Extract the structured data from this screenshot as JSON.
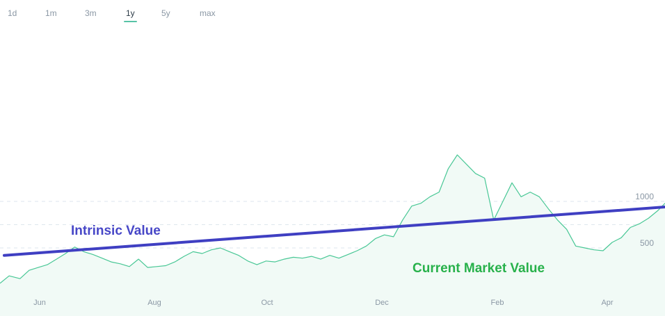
{
  "range_tabs": [
    "1d",
    "1m",
    "3m",
    "1y",
    "5y",
    "max"
  ],
  "active_range": "1y",
  "colors": {
    "price_line": "#48c795",
    "price_fill": "#f1faf6",
    "intrinsic_line": "#3f3fc2",
    "grid": "#dde6ec",
    "axis_text": "#8a97a4",
    "intrinsic_label": "#4747c7",
    "market_label": "#28b14b"
  },
  "chart_data": {
    "type": "line",
    "title": "",
    "xlabel": "",
    "ylabel": "",
    "x_ticks": [
      "Jun",
      "Aug",
      "Oct",
      "Dec",
      "Feb",
      "Apr"
    ],
    "y_ticks": [
      500,
      1000
    ],
    "ylim": [
      0,
      1800
    ],
    "grid": true,
    "annotations": {
      "intrinsic": "Intrinsic Value",
      "market": "Current Market Value"
    },
    "series": [
      {
        "name": "Current Market Value",
        "x": [
          "2020-05-07",
          "2020-05-12",
          "2020-05-18",
          "2020-05-23",
          "2020-05-28",
          "2020-06-02",
          "2020-06-07",
          "2020-06-12",
          "2020-06-17",
          "2020-06-22",
          "2020-06-27",
          "2020-07-02",
          "2020-07-07",
          "2020-07-12",
          "2020-07-17",
          "2020-07-22",
          "2020-07-27",
          "2020-08-01",
          "2020-08-06",
          "2020-08-11",
          "2020-08-16",
          "2020-08-21",
          "2020-08-26",
          "2020-08-31",
          "2020-09-05",
          "2020-09-10",
          "2020-09-15",
          "2020-09-20",
          "2020-09-25",
          "2020-09-30",
          "2020-10-05",
          "2020-10-10",
          "2020-10-15",
          "2020-10-20",
          "2020-10-25",
          "2020-10-30",
          "2020-11-04",
          "2020-11-09",
          "2020-11-14",
          "2020-11-19",
          "2020-11-24",
          "2020-11-29",
          "2020-12-04",
          "2020-12-09",
          "2020-12-14",
          "2020-12-19",
          "2020-12-24",
          "2020-12-29",
          "2021-01-03",
          "2021-01-08",
          "2021-01-13",
          "2021-01-18",
          "2021-01-23",
          "2021-01-28",
          "2021-02-02",
          "2021-02-07",
          "2021-02-12",
          "2021-02-17",
          "2021-02-22",
          "2021-02-27",
          "2021-03-04",
          "2021-03-09",
          "2021-03-14",
          "2021-03-19",
          "2021-03-24",
          "2021-03-29",
          "2021-04-03",
          "2021-04-08",
          "2021-04-13",
          "2021-04-18",
          "2021-04-23",
          "2021-04-28",
          "2021-05-03",
          "2021-05-07"
        ],
        "values": [
          120,
          200,
          170,
          260,
          290,
          320,
          380,
          440,
          510,
          460,
          430,
          390,
          350,
          330,
          300,
          380,
          290,
          300,
          310,
          350,
          410,
          460,
          440,
          480,
          500,
          460,
          420,
          360,
          320,
          360,
          350,
          380,
          400,
          390,
          410,
          380,
          420,
          390,
          430,
          470,
          520,
          600,
          640,
          620,
          800,
          950,
          980,
          1050,
          1100,
          1350,
          1500,
          1400,
          1300,
          1250,
          800,
          1000,
          1200,
          1050,
          1100,
          1050,
          920,
          800,
          700,
          520,
          500,
          480,
          470,
          560,
          610,
          720,
          760,
          820,
          900,
          980
        ]
      },
      {
        "name": "Intrinsic Value",
        "x": [
          "2020-05-07",
          "2021-05-07"
        ],
        "values": [
          420,
          940
        ]
      }
    ]
  }
}
